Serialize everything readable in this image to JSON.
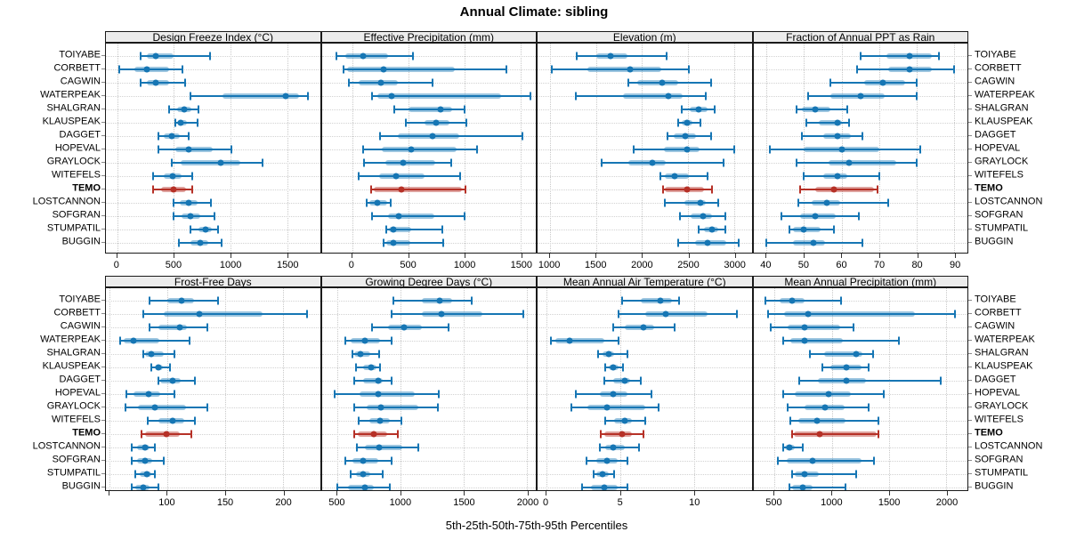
{
  "title": "Annual Climate: sibling",
  "xlabel": "5th-25th-50th-75th-95th Percentiles",
  "stations": [
    "TOIYABE",
    "CORBETT",
    "CAGWIN",
    "WATERPEAK",
    "SHALGRAN",
    "KLAUSPEAK",
    "DAGGET",
    "HOPEVAL",
    "GRAYLOCK",
    "WITEFELS",
    "TEMO",
    "LOSTCANNON",
    "SOFGRAN",
    "STUMPATIL",
    "BUGGIN"
  ],
  "highlight_station": "TEMO",
  "colors": {
    "series": "#1676b4",
    "series_band": "rgba(22,118,180,0.42)",
    "highlight": "#b63127",
    "highlight_band": "rgba(182,49,39,0.45)",
    "grid": "#c9c9c9",
    "strip_bg": "#ececec",
    "border": "#1a1a1a"
  },
  "chart_data": [
    {
      "type": "dotplot-percentiles",
      "title": "Design Freeze Index (°C)",
      "percentiles": [
        5,
        25,
        50,
        75,
        95
      ],
      "xlim": [
        -100,
        1790
      ],
      "ticks": [
        {
          "v": 0,
          "label": "0"
        },
        {
          "v": 500,
          "label": "500"
        },
        {
          "v": 1000,
          "label": "1000"
        },
        {
          "v": 1500,
          "label": "1500"
        }
      ],
      "values": [
        [
          210,
          260,
          340,
          500,
          820
        ],
        [
          20,
          150,
          260,
          460,
          575
        ],
        [
          210,
          260,
          340,
          460,
          600
        ],
        [
          645,
          930,
          1490,
          1605,
          1685
        ],
        [
          455,
          530,
          590,
          655,
          720
        ],
        [
          510,
          530,
          560,
          615,
          710
        ],
        [
          365,
          410,
          480,
          555,
          630
        ],
        [
          365,
          510,
          630,
          840,
          1010
        ],
        [
          480,
          560,
          910,
          1090,
          1280
        ],
        [
          320,
          410,
          490,
          570,
          660
        ],
        [
          320,
          385,
          500,
          605,
          665
        ],
        [
          495,
          555,
          630,
          710,
          825
        ],
        [
          495,
          565,
          645,
          730,
          860
        ],
        [
          645,
          715,
          780,
          835,
          890
        ],
        [
          545,
          645,
          730,
          805,
          920
        ]
      ]
    },
    {
      "type": "dotplot-percentiles",
      "title": "Effective Precipitation (mm)",
      "percentiles": [
        5,
        25,
        50,
        75,
        95
      ],
      "xlim": [
        -270,
        1635
      ],
      "ticks": [
        {
          "v": 0,
          "label": "0"
        },
        {
          "v": 500,
          "label": "500"
        },
        {
          "v": 1000,
          "label": "1000"
        },
        {
          "v": 1500,
          "label": "1500"
        }
      ],
      "values": [
        [
          -140,
          -60,
          95,
          320,
          545
        ],
        [
          -75,
          -45,
          280,
          915,
          1370
        ],
        [
          -25,
          55,
          260,
          410,
          720
        ],
        [
          180,
          225,
          355,
          1330,
          1590
        ],
        [
          375,
          500,
          785,
          890,
          1000
        ],
        [
          475,
          645,
          745,
          865,
          1020
        ],
        [
          250,
          410,
          720,
          955,
          1520
        ],
        [
          95,
          265,
          525,
          930,
          1110
        ],
        [
          105,
          295,
          455,
          740,
          885
        ],
        [
          55,
          240,
          390,
          645,
          960
        ],
        [
          170,
          190,
          440,
          980,
          1010
        ],
        [
          130,
          155,
          225,
          310,
          345
        ],
        [
          175,
          320,
          415,
          735,
          1000
        ],
        [
          305,
          330,
          370,
          530,
          800
        ],
        [
          280,
          305,
          365,
          515,
          815
        ]
      ]
    },
    {
      "type": "dotplot-percentiles",
      "title": "Elevation (m)",
      "percentiles": [
        5,
        25,
        50,
        75,
        95
      ],
      "xlim": [
        865,
        3190
      ],
      "ticks": [
        {
          "v": 1000,
          "label": "1000"
        },
        {
          "v": 1500,
          "label": "1500"
        },
        {
          "v": 2000,
          "label": "2000"
        },
        {
          "v": 2500,
          "label": "2500"
        },
        {
          "v": 3000,
          "label": "3000"
        }
      ],
      "values": [
        [
          1290,
          1500,
          1655,
          1840,
          2270
        ],
        [
          1015,
          1405,
          1875,
          2205,
          2505
        ],
        [
          1855,
          1950,
          2215,
          2390,
          2750
        ],
        [
          1280,
          1790,
          2290,
          2445,
          2695
        ],
        [
          2430,
          2515,
          2615,
          2710,
          2790
        ],
        [
          2390,
          2430,
          2485,
          2550,
          2630
        ],
        [
          2280,
          2345,
          2470,
          2590,
          2750
        ],
        [
          1910,
          2240,
          2485,
          2620,
          3000
        ],
        [
          1565,
          1855,
          2110,
          2255,
          2890
        ],
        [
          2195,
          2250,
          2355,
          2505,
          2710
        ],
        [
          2230,
          2250,
          2485,
          2675,
          2760
        ],
        [
          2250,
          2460,
          2630,
          2695,
          2825
        ],
        [
          2410,
          2525,
          2665,
          2760,
          2900
        ],
        [
          2615,
          2675,
          2760,
          2825,
          2900
        ],
        [
          2390,
          2575,
          2710,
          2910,
          3050
        ]
      ]
    },
    {
      "type": "dotplot-percentiles",
      "title": "Fraction of Annual PPT as Rain",
      "percentiles": [
        5,
        25,
        50,
        75,
        95
      ],
      "xlim": [
        36.5,
        93.5
      ],
      "ticks": [
        {
          "v": 40,
          "label": "40"
        },
        {
          "v": 50,
          "label": "50"
        },
        {
          "v": 60,
          "label": "60"
        },
        {
          "v": 70,
          "label": "70"
        },
        {
          "v": 80,
          "label": "80"
        },
        {
          "v": 90,
          "label": "90"
        }
      ],
      "values": [
        [
          65,
          72,
          78,
          84,
          86
        ],
        [
          64,
          72.5,
          78,
          84,
          90
        ],
        [
          57,
          66,
          71,
          77,
          80
        ],
        [
          51,
          57,
          65,
          71.5,
          80
        ],
        [
          48,
          49.5,
          53,
          57,
          61.5
        ],
        [
          50.5,
          54,
          59,
          60,
          62
        ],
        [
          49.5,
          55,
          59,
          62.5,
          65.5
        ],
        [
          41,
          50,
          60,
          70,
          81
        ],
        [
          48,
          56.5,
          62,
          74.5,
          80
        ],
        [
          50,
          55,
          59,
          61.5,
          70
        ],
        [
          49,
          53,
          58,
          68.5,
          69.5
        ],
        [
          48.5,
          52,
          56,
          59.5,
          72.5
        ],
        [
          44,
          49,
          53,
          58.5,
          64.5
        ],
        [
          46,
          47,
          50,
          54.5,
          58
        ],
        [
          40,
          47,
          52.5,
          55.5,
          65.5
        ]
      ]
    },
    {
      "type": "dotplot-percentiles",
      "title": "Frost-Free Days",
      "percentiles": [
        5,
        25,
        50,
        75,
        95
      ],
      "xlim": [
        47,
        232
      ],
      "ticks": [
        {
          "v": 50,
          "label": ""
        },
        {
          "v": 100,
          "label": "100"
        },
        {
          "v": 150,
          "label": "150"
        },
        {
          "v": 200,
          "label": "200"
        }
      ],
      "values": [
        [
          85,
          100,
          112,
          123,
          144
        ],
        [
          79,
          97,
          128,
          182,
          221
        ],
        [
          85,
          92,
          111,
          117,
          135
        ],
        [
          59,
          62,
          71,
          93,
          119
        ],
        [
          79,
          81,
          86,
          97,
          106
        ],
        [
          86,
          89,
          92,
          96,
          102
        ],
        [
          92,
          94,
          105,
          112,
          124
        ],
        [
          65,
          71,
          84,
          94,
          106
        ],
        [
          64,
          75,
          89,
          116,
          135
        ],
        [
          83,
          92,
          105,
          115,
          124
        ],
        [
          78,
          81,
          99,
          111,
          121
        ],
        [
          69,
          74,
          81,
          85,
          89
        ],
        [
          69,
          74,
          81,
          87,
          97
        ],
        [
          72,
          76,
          82,
          86,
          89
        ],
        [
          69,
          72,
          79,
          85,
          92
        ]
      ]
    },
    {
      "type": "dotplot-percentiles",
      "title": "Growing Degree Days (°C)",
      "percentiles": [
        5,
        25,
        50,
        75,
        95
      ],
      "xlim": [
        375,
        2070
      ],
      "ticks": [
        {
          "v": 500,
          "label": "500"
        },
        {
          "v": 1000,
          "label": "1000"
        },
        {
          "v": 1500,
          "label": "1500"
        },
        {
          "v": 2000,
          "label": "2000"
        }
      ],
      "values": [
        [
          945,
          1165,
          1310,
          1405,
          1565
        ],
        [
          930,
          1170,
          1320,
          1645,
          1970
        ],
        [
          775,
          900,
          1030,
          1165,
          1380
        ],
        [
          565,
          605,
          720,
          835,
          925
        ],
        [
          620,
          635,
          680,
          760,
          830
        ],
        [
          645,
          705,
          765,
          805,
          835
        ],
        [
          635,
          705,
          820,
          860,
          925
        ],
        [
          480,
          675,
          820,
          1110,
          1300
        ],
        [
          630,
          730,
          845,
          1140,
          1295
        ],
        [
          665,
          750,
          835,
          915,
          1005
        ],
        [
          635,
          660,
          790,
          890,
          975
        ],
        [
          650,
          720,
          830,
          1015,
          1140
        ],
        [
          560,
          620,
          705,
          820,
          925
        ],
        [
          605,
          645,
          705,
          760,
          855
        ],
        [
          495,
          580,
          715,
          790,
          915
        ]
      ]
    },
    {
      "type": "dotplot-percentiles",
      "title": "Mean Annual Air Temperature (°C)",
      "percentiles": [
        5,
        25,
        50,
        75,
        95
      ],
      "xlim": [
        -0.6,
        13.9
      ],
      "ticks": [
        {
          "v": 0,
          "label": "0"
        },
        {
          "v": 5,
          "label": "5"
        },
        {
          "v": 10,
          "label": "10"
        }
      ],
      "values": [
        [
          5.1,
          6.4,
          7.7,
          8.5,
          9.0
        ],
        [
          4.9,
          6.7,
          8.1,
          10.9,
          12.9
        ],
        [
          4.5,
          5.3,
          6.6,
          7.3,
          8.7
        ],
        [
          0.3,
          0.6,
          1.6,
          3.9,
          4.9
        ],
        [
          3.5,
          3.8,
          4.2,
          4.6,
          5.5
        ],
        [
          4.0,
          4.2,
          4.5,
          4.9,
          5.2
        ],
        [
          3.9,
          4.5,
          5.3,
          5.7,
          6.4
        ],
        [
          2.0,
          3.6,
          4.5,
          5.5,
          7.1
        ],
        [
          1.7,
          2.8,
          4.1,
          6.7,
          7.6
        ],
        [
          4.0,
          4.6,
          5.3,
          5.8,
          6.7
        ],
        [
          3.7,
          3.9,
          5.1,
          5.8,
          6.6
        ],
        [
          3.6,
          4.0,
          4.5,
          5.3,
          6.3
        ],
        [
          2.7,
          3.4,
          4.1,
          4.8,
          5.5
        ],
        [
          3.2,
          3.4,
          3.8,
          4.2,
          4.6
        ],
        [
          2.4,
          3.0,
          3.9,
          4.8,
          5.5
        ]
      ]
    },
    {
      "type": "dotplot-percentiles",
      "title": "Mean Annual Precipitation (mm)",
      "percentiles": [
        5,
        25,
        50,
        75,
        95
      ],
      "xlim": [
        315,
        2185
      ],
      "ticks": [
        {
          "v": 500,
          "label": "500"
        },
        {
          "v": 1000,
          "label": "1000"
        },
        {
          "v": 1500,
          "label": "1500"
        },
        {
          "v": 2000,
          "label": "2000"
        }
      ],
      "values": [
        [
          420,
          545,
          655,
          760,
          1080
        ],
        [
          440,
          580,
          795,
          1725,
          2075
        ],
        [
          465,
          615,
          760,
          1070,
          1190
        ],
        [
          575,
          635,
          765,
          1095,
          1585
        ],
        [
          810,
          935,
          1215,
          1270,
          1360
        ],
        [
          915,
          990,
          1130,
          1260,
          1320
        ],
        [
          715,
          880,
          1130,
          1295,
          1950
        ],
        [
          575,
          680,
          975,
          1170,
          1455
        ],
        [
          615,
          760,
          940,
          1115,
          1320
        ],
        [
          640,
          705,
          870,
          1120,
          1405
        ],
        [
          655,
          665,
          895,
          1390,
          1405
        ],
        [
          575,
          590,
          630,
          680,
          750
        ],
        [
          525,
          605,
          830,
          1260,
          1370
        ],
        [
          655,
          680,
          760,
          890,
          1210
        ],
        [
          630,
          655,
          745,
          830,
          1120
        ]
      ]
    }
  ]
}
